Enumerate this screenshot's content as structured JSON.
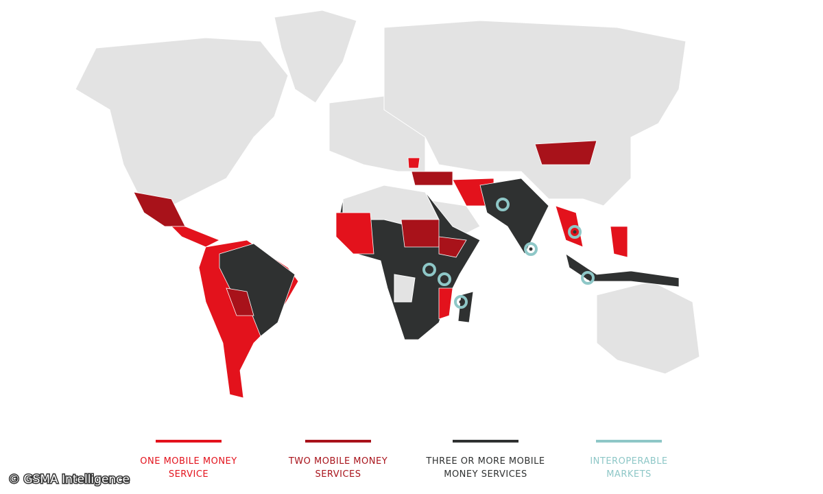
{
  "legend": [
    {
      "lines": [
        "ONE MOBILE MONEY",
        "SERVICE"
      ],
      "color": "#e3121c"
    },
    {
      "lines": [
        "TWO MOBILE MONEY",
        "SERVICES"
      ],
      "color": "#a8121a"
    },
    {
      "lines": [
        "THREE OR MORE MOBILE",
        "MONEY SERVICES"
      ],
      "color": "#2f3131"
    },
    {
      "lines": [
        "INTEROPERABLE",
        "MARKETS"
      ],
      "color": "#8ec7c7"
    }
  ],
  "credit": "© GSMA Intelligence"
}
